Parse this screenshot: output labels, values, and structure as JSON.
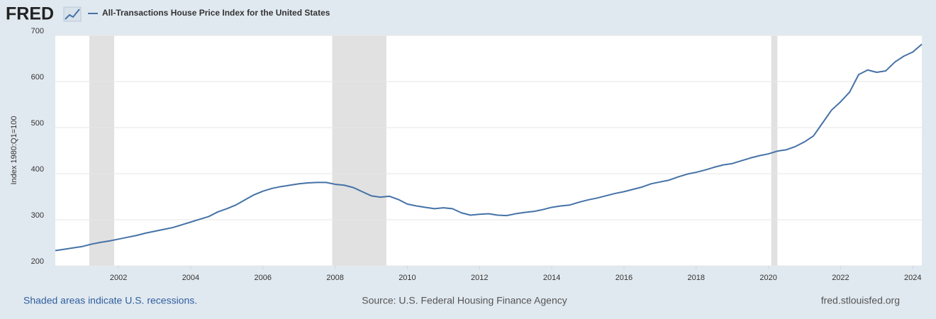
{
  "chart_data": {
    "type": "line",
    "logo": "FRED",
    "ylabel": "Index 1980:Q1=100",
    "footnote": "Shaded areas indicate U.S. recessions.",
    "source": "Source: U.S. Federal Housing Finance Agency",
    "site": "fred.stlouisfed.org",
    "xlim": [
      2000.25,
      2024.25
    ],
    "xticks": [
      2002,
      2004,
      2006,
      2008,
      2010,
      2012,
      2014,
      2016,
      2018,
      2020,
      2022,
      2024
    ],
    "ylim": [
      200,
      700
    ],
    "yticks": [
      200,
      300,
      400,
      500,
      600,
      700
    ],
    "grid": true,
    "recessions": [
      [
        2001.19,
        2001.88
      ],
      [
        2007.92,
        2009.42
      ],
      [
        2020.08,
        2020.25
      ]
    ],
    "recession_color": "#e1e1e1",
    "x": [
      2000.25,
      2000.5,
      2000.75,
      2001,
      2001.25,
      2001.5,
      2001.75,
      2002,
      2002.25,
      2002.5,
      2002.75,
      2003,
      2003.25,
      2003.5,
      2003.75,
      2004,
      2004.25,
      2004.5,
      2004.75,
      2005,
      2005.25,
      2005.5,
      2005.75,
      2006,
      2006.25,
      2006.5,
      2006.75,
      2007,
      2007.25,
      2007.5,
      2007.75,
      2008,
      2008.25,
      2008.5,
      2008.75,
      2009,
      2009.25,
      2009.5,
      2009.75,
      2010,
      2010.25,
      2010.5,
      2010.75,
      2011,
      2011.25,
      2011.5,
      2011.75,
      2012,
      2012.25,
      2012.5,
      2012.75,
      2013,
      2013.25,
      2013.5,
      2013.75,
      2014,
      2014.25,
      2014.5,
      2014.75,
      2015,
      2015.25,
      2015.5,
      2015.75,
      2016,
      2016.25,
      2016.5,
      2016.75,
      2017,
      2017.25,
      2017.5,
      2017.75,
      2018,
      2018.25,
      2018.5,
      2018.75,
      2019,
      2019.25,
      2019.5,
      2019.75,
      2020,
      2020.25,
      2020.5,
      2020.75,
      2021,
      2021.25,
      2021.5,
      2021.75,
      2022,
      2022.25,
      2022.5,
      2022.75,
      2023,
      2023.25,
      2023.5,
      2023.75,
      2024,
      2024.25
    ],
    "series": [
      {
        "name": "All-Transactions House Price Index for the United States",
        "color": "#4572a7",
        "values": [
          233,
          236,
          239,
          242,
          247,
          251,
          254,
          258,
          262,
          266,
          271,
          275,
          279,
          283,
          289,
          295,
          301,
          307,
          317,
          324,
          332,
          343,
          354,
          362,
          368,
          372,
          375,
          378,
          380,
          381,
          381,
          377,
          375,
          370,
          361,
          352,
          349,
          351,
          344,
          334,
          330,
          327,
          324,
          326,
          324,
          315,
          310,
          312,
          313,
          310,
          309,
          313,
          316,
          318,
          322,
          327,
          330,
          332,
          338,
          343,
          347,
          352,
          357,
          361,
          366,
          371,
          378,
          382,
          386,
          393,
          399,
          403,
          408,
          414,
          419,
          422,
          428,
          434,
          439,
          443,
          449,
          452,
          459,
          469,
          482,
          510,
          538,
          556,
          577,
          615,
          625,
          620,
          623,
          642,
          655,
          664,
          681
        ]
      }
    ]
  }
}
